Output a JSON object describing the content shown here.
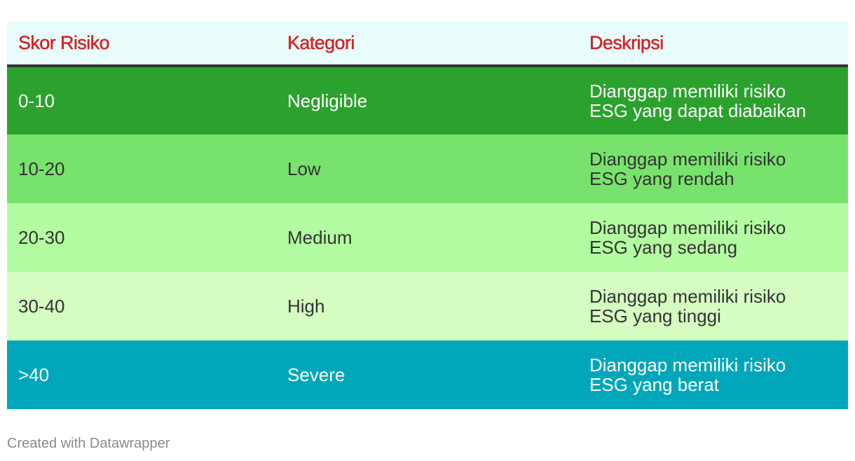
{
  "table": {
    "headers": [
      "Skor Risiko",
      "Kategori",
      "Deskripsi"
    ],
    "rows": [
      {
        "score": "0-10",
        "category": "Negligible",
        "desc_line1": "Dianggap memiliki risiko",
        "desc_line2": "ESG yang dapat diabaikan",
        "bg": "#2ba22d",
        "fg": "#ffffff"
      },
      {
        "score": "10-20",
        "category": "Low",
        "desc_line1": "Dianggap memiliki risiko",
        "desc_line2": "ESG yang rendah",
        "bg": "#78e36c",
        "fg": "#333333"
      },
      {
        "score": "20-30",
        "category": "Medium",
        "desc_line1": "Dianggap memiliki risiko",
        "desc_line2": "ESG yang sedang",
        "bg": "#b3fca1",
        "fg": "#333333"
      },
      {
        "score": "30-40",
        "category": "High",
        "desc_line1": "Dianggap memiliki risiko",
        "desc_line2": "ESG yang tinggi",
        "bg": "#d5fdc1",
        "fg": "#333333"
      },
      {
        "score": ">40",
        "category": "Severe",
        "desc_line1": "Dianggap memiliki risiko",
        "desc_line2": "ESG yang berat",
        "bg": "#00a7ba",
        "fg": "#ffffff"
      }
    ]
  },
  "colors": {
    "header_bg": "#e9fdfd",
    "header_text": "#d42323",
    "header_rule": "#333333"
  },
  "footer": {
    "credit": "Created with Datawrapper"
  }
}
